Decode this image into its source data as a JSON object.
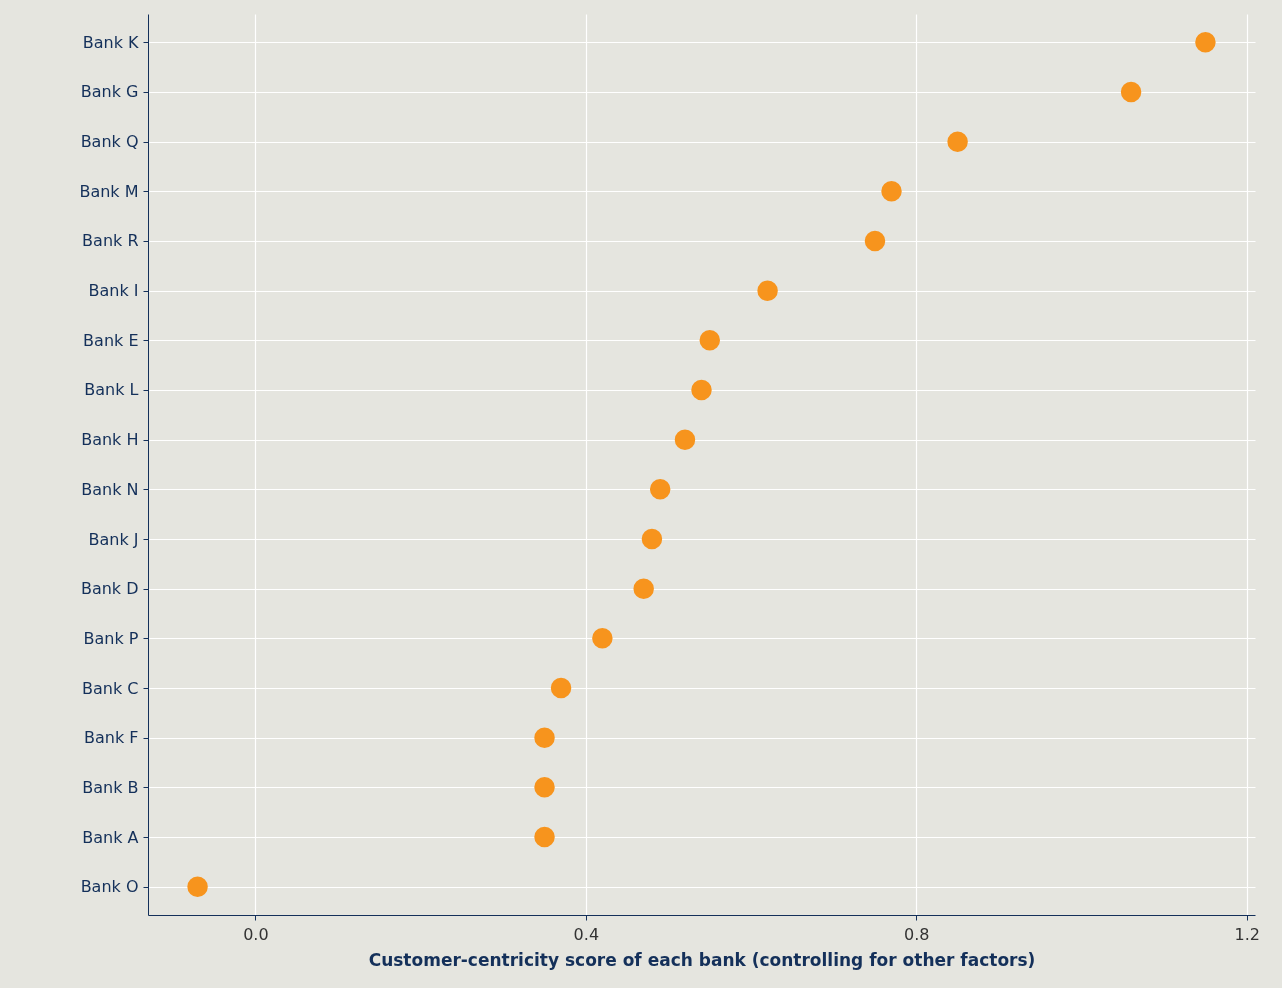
{
  "chart_data": {
    "type": "scatter",
    "orientation": "horizontal",
    "xlabel": "Customer-centricity score of each bank (controlling for other factors)",
    "categories": [
      "Bank K",
      "Bank G",
      "Bank Q",
      "Bank M",
      "Bank R",
      "Bank I",
      "Bank E",
      "Bank L",
      "Bank H",
      "Bank N",
      "Bank J",
      "Bank D",
      "Bank P",
      "Bank C",
      "Bank F",
      "Bank B",
      "Bank A",
      "Bank O"
    ],
    "series": [
      {
        "color": "#f7941d",
        "values": [
          1.15,
          1.06,
          0.85,
          0.77,
          0.75,
          0.62,
          0.55,
          0.54,
          0.52,
          0.49,
          0.48,
          0.47,
          0.42,
          0.37,
          0.35,
          0.35,
          0.35,
          -0.07
        ]
      }
    ],
    "xlim": [
      -0.13,
      1.21
    ],
    "xticks": [
      {
        "value": 0,
        "label": "0.0"
      },
      0.4,
      0.8,
      1.2
    ],
    "grid": true,
    "marker": "circle"
  }
}
